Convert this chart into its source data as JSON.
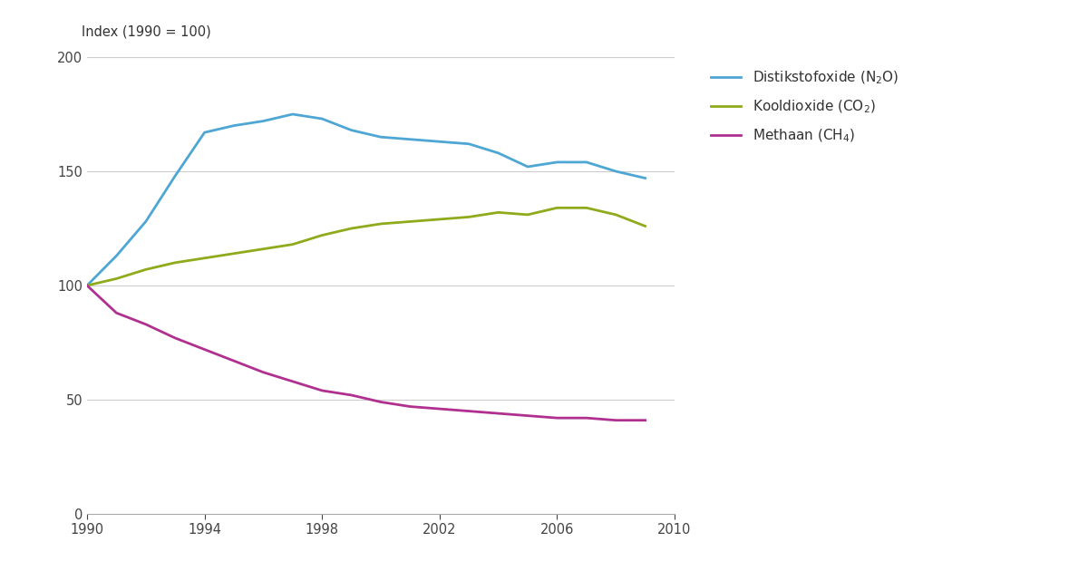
{
  "years": [
    1990,
    1991,
    1992,
    1993,
    1994,
    1995,
    1996,
    1997,
    1998,
    1999,
    2000,
    2001,
    2002,
    2003,
    2004,
    2005,
    2006,
    2007,
    2008,
    2009
  ],
  "n2o": [
    100,
    113,
    128,
    148,
    167,
    170,
    172,
    175,
    173,
    168,
    165,
    164,
    163,
    162,
    158,
    152,
    154,
    154,
    150,
    147
  ],
  "co2": [
    100,
    103,
    107,
    110,
    112,
    114,
    116,
    118,
    122,
    125,
    127,
    128,
    129,
    130,
    132,
    131,
    134,
    134,
    131,
    126
  ],
  "ch4": [
    100,
    88,
    83,
    77,
    72,
    67,
    62,
    58,
    54,
    52,
    49,
    47,
    46,
    45,
    44,
    43,
    42,
    42,
    41,
    41
  ],
  "color_n2o": "#4da6d4",
  "color_co2": "#8faa1a",
  "color_ch4": "#b03090",
  "ylabel": "Index (1990 = 100)",
  "ylim": [
    0,
    200
  ],
  "xlim": [
    1990,
    2010
  ],
  "yticks": [
    0,
    50,
    100,
    150,
    200
  ],
  "xticks": [
    1990,
    1994,
    1998,
    2002,
    2006,
    2010
  ],
  "grid_color": "#cccccc",
  "background_color": "#ffffff",
  "line_width": 2.0,
  "font_size_ylabel": 10.5,
  "font_size_ticks": 10.5,
  "font_size_legend": 11
}
